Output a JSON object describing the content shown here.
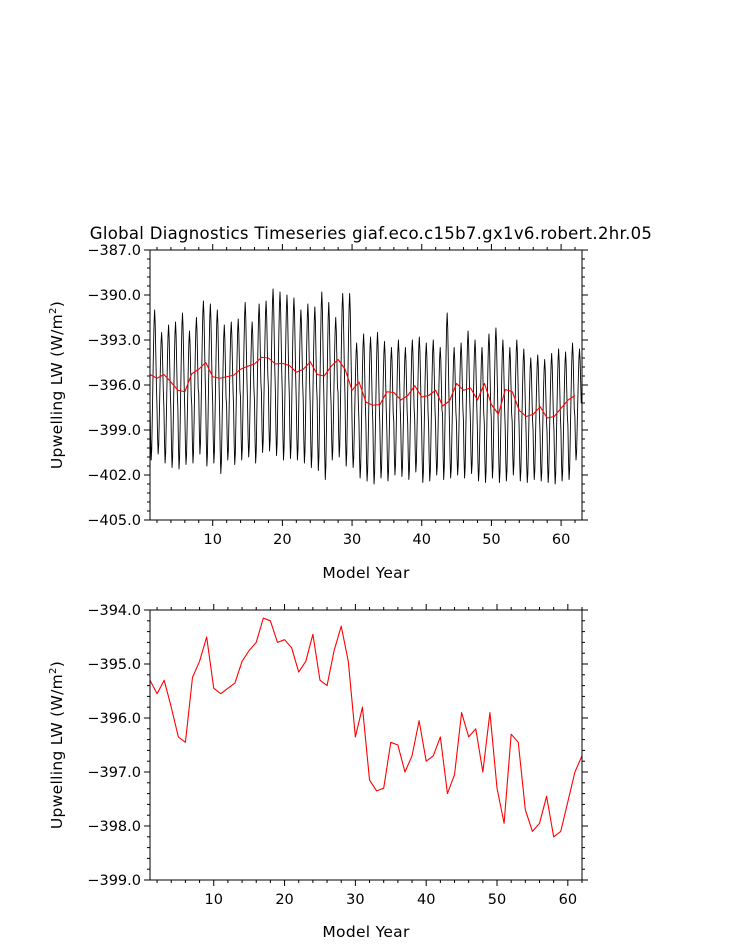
{
  "chart_data": [
    {
      "type": "line",
      "title": "Global Diagnostics Timeseries giaf.eco.c15b7.gx1v6.robert.2hr.05",
      "xlabel": "Model Year",
      "ylabel_main": "Upwelling LW (W/m",
      "ylabel_sup": "2",
      "ylabel_close": ")",
      "xlim": [
        1,
        63
      ],
      "ylim": [
        -405.0,
        -387.0
      ],
      "xticks": [
        10,
        20,
        30,
        40,
        50,
        60
      ],
      "xtick_labels": [
        "10",
        "20",
        "30",
        "40",
        "50",
        "60"
      ],
      "yticks": [
        -405.0,
        -402.0,
        -399.0,
        -396.0,
        -393.0,
        -390.0,
        -387.0
      ],
      "ytick_labels": [
        "−405.0",
        "−402.0",
        "−399.0",
        "−396.0",
        "−393.0",
        "−390.0",
        "−387.0"
      ],
      "series": [
        {
          "color": "#000000",
          "kind": "monthly",
          "x_start": 1.0,
          "x_step": 0.0833,
          "annual_cycle": [
            -397.2,
            -399.6,
            -401.0,
            -400.3,
            -398.2,
            -396.0,
            -393.9,
            -392.2,
            -391.4,
            -392.3,
            -394.2,
            -396.1
          ],
          "max_per_year": [
            -391.0,
            -392.5,
            -392.0,
            -391.8,
            -391.2,
            -392.4,
            -391.5,
            -390.4,
            -390.6,
            -391.0,
            -392.0,
            -391.8,
            -391.6,
            -390.5,
            -391.8,
            -390.6,
            -390.4,
            -389.6,
            -389.8,
            -390.0,
            -390.2,
            -391.0,
            -390.6,
            -390.8,
            -389.8,
            -390.5,
            -391.5,
            -389.9,
            -389.9,
            -393.2,
            -392.6,
            -392.8,
            -392.5,
            -393.1,
            -393.5,
            -393.0,
            -393.5,
            -393.0,
            -392.8,
            -393.2,
            -393.0,
            -393.5,
            -391.2,
            -393.5,
            -393.2,
            -392.4,
            -393.0,
            -393.5,
            -392.6,
            -392.2,
            -393.0,
            -393.5,
            -393.0,
            -393.6,
            -394.2,
            -394.0,
            -394.3,
            -393.9,
            -393.6,
            -393.8,
            -393.2,
            -393.6
          ],
          "min_per_year": [
            -401.0,
            -400.6,
            -401.2,
            -401.5,
            -401.6,
            -401.3,
            -401.2,
            -400.6,
            -401.4,
            -401.2,
            -401.9,
            -401.0,
            -401.3,
            -401.0,
            -400.8,
            -401.2,
            -400.5,
            -400.4,
            -400.7,
            -401.0,
            -400.9,
            -401.0,
            -401.2,
            -401.5,
            -401.7,
            -402.3,
            -401.0,
            -400.8,
            -401.4,
            -401.5,
            -402.2,
            -402.4,
            -402.6,
            -402.2,
            -402.4,
            -402.0,
            -402.1,
            -402.3,
            -401.8,
            -402.5,
            -402.4,
            -402.0,
            -402.3,
            -402.2,
            -402.0,
            -402.2,
            -401.9,
            -402.4,
            -402.5,
            -402.2,
            -402.5,
            -402.4,
            -402.0,
            -402.4,
            -402.5,
            -402.3,
            -402.4,
            -402.5,
            -402.6,
            -402.4,
            -402.3,
            -401.0
          ]
        },
        {
          "color": "#ff0000",
          "kind": "annual",
          "x": [
            1,
            2,
            3,
            4,
            5,
            6,
            7,
            8,
            9,
            10,
            11,
            12,
            13,
            14,
            15,
            16,
            17,
            18,
            19,
            20,
            21,
            22,
            23,
            24,
            25,
            26,
            27,
            28,
            29,
            30,
            31,
            32,
            33,
            34,
            35,
            36,
            37,
            38,
            39,
            40,
            41,
            42,
            43,
            44,
            45,
            46,
            47,
            48,
            49,
            50,
            51,
            52,
            53,
            54,
            55,
            56,
            57,
            58,
            59,
            60,
            61,
            62
          ],
          "y": [
            -395.3,
            -395.55,
            -395.3,
            -395.8,
            -396.35,
            -396.45,
            -395.25,
            -394.95,
            -394.5,
            -395.45,
            -395.55,
            -395.45,
            -395.35,
            -394.95,
            -394.75,
            -394.6,
            -394.15,
            -394.2,
            -394.6,
            -394.55,
            -394.7,
            -395.15,
            -394.95,
            -394.45,
            -395.3,
            -395.4,
            -394.75,
            -394.3,
            -394.95,
            -396.35,
            -395.8,
            -397.15,
            -397.35,
            -397.3,
            -396.45,
            -396.5,
            -397.0,
            -396.7,
            -396.05,
            -396.8,
            -396.7,
            -396.35,
            -397.4,
            -397.05,
            -395.9,
            -396.35,
            -396.2,
            -397.0,
            -395.9,
            -397.3,
            -397.95,
            -396.3,
            -396.45,
            -397.7,
            -398.1,
            -397.95,
            -397.45,
            -398.2,
            -398.1,
            -397.55,
            -397.0,
            -396.7
          ]
        }
      ]
    },
    {
      "type": "line",
      "xlabel": "Model Year",
      "ylabel_main": "Upwelling LW (W/m",
      "ylabel_sup": "2",
      "ylabel_close": ")",
      "xlim": [
        1,
        62
      ],
      "ylim": [
        -399.0,
        -394.0
      ],
      "xticks": [
        10,
        20,
        30,
        40,
        50,
        60
      ],
      "xtick_labels": [
        "10",
        "20",
        "30",
        "40",
        "50",
        "60"
      ],
      "yticks": [
        -399.0,
        -398.0,
        -397.0,
        -396.0,
        -395.0,
        -394.0
      ],
      "ytick_labels": [
        "−399.0",
        "−398.0",
        "−397.0",
        "−396.0",
        "−395.0",
        "−394.0"
      ],
      "series": [
        {
          "color": "#ff0000",
          "kind": "annual",
          "x": [
            1,
            2,
            3,
            4,
            5,
            6,
            7,
            8,
            9,
            10,
            11,
            12,
            13,
            14,
            15,
            16,
            17,
            18,
            19,
            20,
            21,
            22,
            23,
            24,
            25,
            26,
            27,
            28,
            29,
            30,
            31,
            32,
            33,
            34,
            35,
            36,
            37,
            38,
            39,
            40,
            41,
            42,
            43,
            44,
            45,
            46,
            47,
            48,
            49,
            50,
            51,
            52,
            53,
            54,
            55,
            56,
            57,
            58,
            59,
            60,
            61,
            62
          ],
          "y": [
            -395.3,
            -395.55,
            -395.3,
            -395.8,
            -396.35,
            -396.45,
            -395.25,
            -394.95,
            -394.5,
            -395.45,
            -395.55,
            -395.45,
            -395.35,
            -394.95,
            -394.75,
            -394.6,
            -394.15,
            -394.2,
            -394.6,
            -394.55,
            -394.7,
            -395.15,
            -394.95,
            -394.45,
            -395.3,
            -395.4,
            -394.75,
            -394.3,
            -394.95,
            -396.35,
            -395.8,
            -397.15,
            -397.35,
            -397.3,
            -396.45,
            -396.5,
            -397.0,
            -396.7,
            -396.05,
            -396.8,
            -396.7,
            -396.35,
            -397.4,
            -397.05,
            -395.9,
            -396.35,
            -396.2,
            -397.0,
            -395.9,
            -397.3,
            -397.95,
            -396.3,
            -396.45,
            -397.7,
            -398.1,
            -397.95,
            -397.45,
            -398.2,
            -398.1,
            -397.55,
            -397.0,
            -396.7
          ]
        }
      ]
    }
  ]
}
